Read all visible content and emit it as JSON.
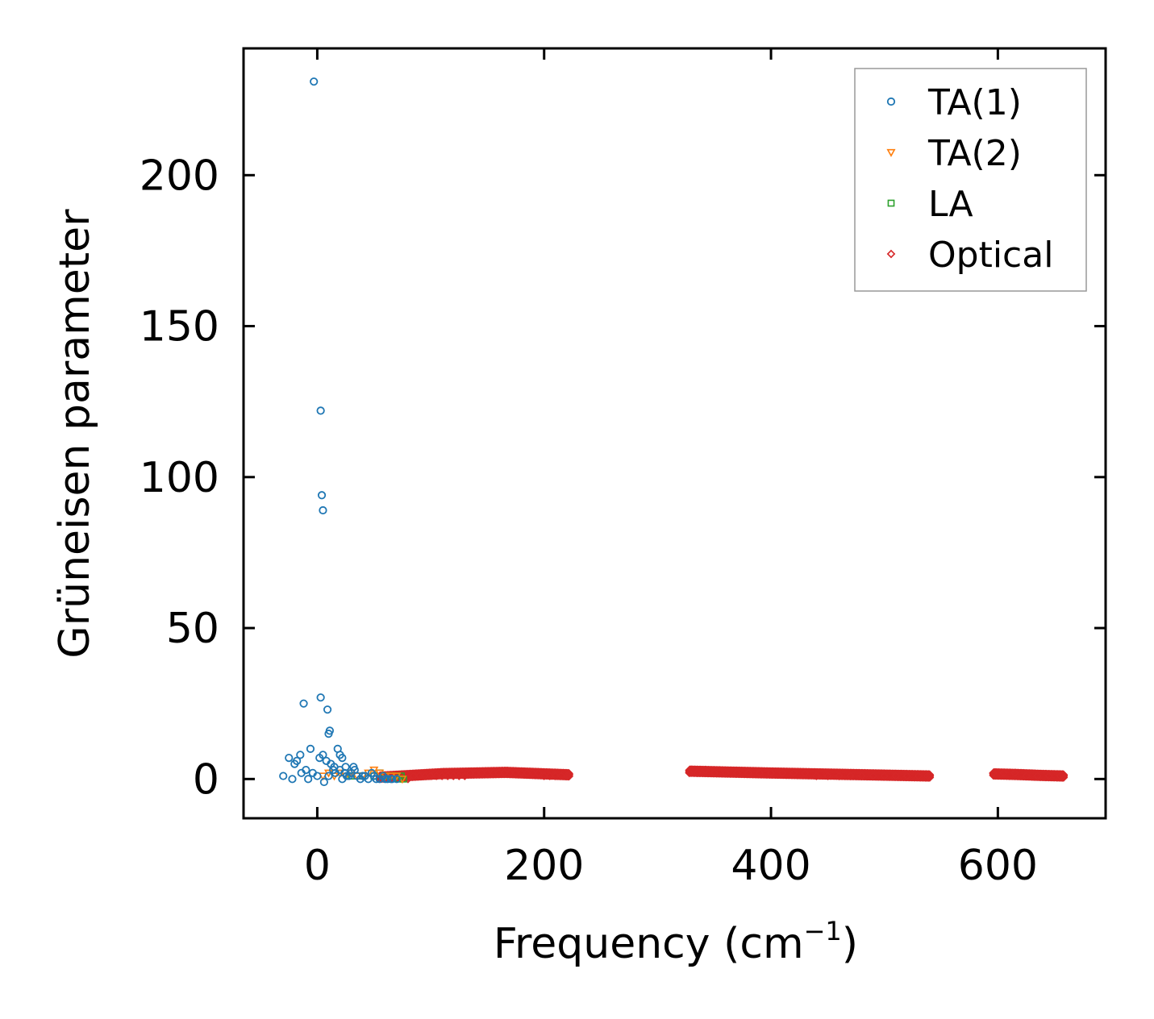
{
  "chart_data": {
    "type": "scatter",
    "xlabel": "Frequency (cm",
    "xlabel_sup": "−1",
    "xlabel_tail": ")",
    "ylabel": "Grüneisen parameter",
    "xlim": [
      -65,
      695
    ],
    "ylim": [
      -13,
      242
    ],
    "xticks": [
      0,
      200,
      400,
      600
    ],
    "yticks": [
      0,
      50,
      100,
      150,
      200
    ],
    "xtick_labels": [
      "0",
      "200",
      "400",
      "600"
    ],
    "ytick_labels": [
      "0",
      "50",
      "100",
      "150",
      "200"
    ],
    "grid": false,
    "legend_position": "top-right",
    "series": [
      {
        "name": "TA(1)",
        "marker": "circle",
        "color": "#1f77b4",
        "x": [
          -3,
          3,
          4,
          5,
          -12,
          3,
          9,
          10,
          11,
          18,
          20,
          22,
          -6,
          -18,
          -20,
          -25,
          -30,
          -15,
          -10,
          -8,
          -4,
          0,
          2,
          5,
          8,
          12,
          15,
          20,
          25,
          30,
          35,
          40,
          45,
          50,
          55,
          60,
          65,
          -22,
          -14,
          6,
          14,
          24,
          28,
          33,
          38,
          42,
          48,
          52,
          58,
          62,
          66,
          70,
          10,
          16,
          22,
          26,
          32
        ],
        "y": [
          231,
          122,
          94,
          89,
          25,
          27,
          23,
          15,
          16,
          10,
          8,
          7,
          10,
          6,
          5,
          7,
          1,
          8,
          3,
          0,
          2,
          1,
          7,
          8,
          6,
          5,
          4,
          3,
          4,
          2,
          1,
          1,
          0,
          1,
          0,
          0,
          0,
          0,
          2,
          -1,
          3,
          2,
          1,
          3,
          0,
          1,
          2,
          0,
          1,
          0,
          0,
          0,
          1,
          2,
          0,
          1,
          4
        ]
      },
      {
        "name": "TA(2)",
        "marker": "triangle-down",
        "color": "#ff7f0e",
        "x": [
          5,
          10,
          15,
          20,
          25,
          30,
          35,
          40,
          45,
          50,
          55,
          60,
          65,
          70,
          75
        ],
        "y": [
          1,
          2,
          1,
          2,
          1,
          2,
          1,
          1,
          2,
          3,
          2,
          1,
          1,
          1,
          0
        ]
      },
      {
        "name": "LA",
        "marker": "square",
        "color": "#2ca02c",
        "x": [
          30,
          40,
          50,
          55,
          60,
          65,
          70,
          72,
          74,
          76
        ],
        "y": [
          1,
          1,
          1,
          2,
          1,
          1,
          1,
          0,
          1,
          0
        ]
      },
      {
        "name": "Optical",
        "marker": "diamond",
        "color": "#d62728",
        "bands": [
          {
            "from": 55,
            "to": 222,
            "y": [
              0.6,
              1.8,
              2.2,
              1.4
            ]
          },
          {
            "from": 328,
            "to": 540,
            "y": [
              2.6,
              2.0,
              1.5,
              1.0
            ]
          },
          {
            "from": 596,
            "to": 658,
            "y": [
              1.7,
              1.5,
              1.2,
              1.0
            ]
          }
        ],
        "x": [
          55,
          60,
          65,
          70,
          75,
          80,
          85,
          90,
          95,
          100,
          105,
          110,
          115,
          120,
          125,
          130,
          135,
          140,
          145,
          150,
          155,
          160,
          165,
          170,
          175,
          180,
          185,
          190,
          195,
          200,
          205,
          210,
          215,
          220,
          328,
          335,
          342,
          350,
          360,
          370,
          380,
          390,
          400,
          410,
          420,
          430,
          440,
          450,
          460,
          470,
          480,
          490,
          500,
          510,
          520,
          530,
          538,
          596,
          605,
          615,
          625,
          635,
          645,
          655
        ],
        "y": [
          1,
          1,
          1,
          1,
          0,
          0,
          1,
          1,
          1,
          1,
          1,
          1,
          1,
          1,
          1,
          1,
          2,
          2,
          2,
          2,
          2,
          2,
          2,
          2,
          2,
          2,
          2,
          2,
          2,
          1,
          1,
          1,
          1,
          1,
          2,
          2,
          3,
          2,
          2,
          2,
          2,
          2,
          2,
          2,
          2,
          2,
          1,
          1,
          1,
          1,
          1,
          1,
          1,
          1,
          1,
          1,
          1,
          2,
          2,
          2,
          1,
          1,
          1,
          1
        ]
      }
    ]
  }
}
